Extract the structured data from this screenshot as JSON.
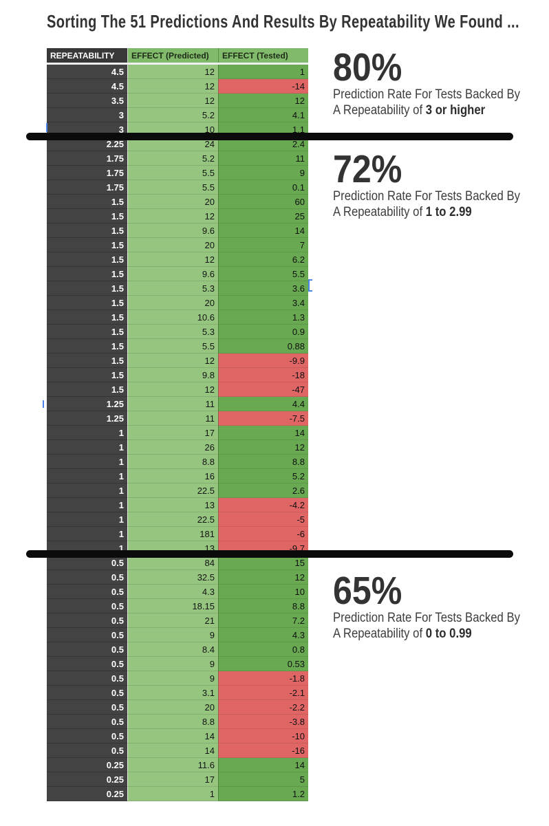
{
  "title": "Sorting The 51 Predictions And Results By Repeatability We Found ...",
  "annotations": [
    {
      "percent": "80%",
      "line1": "Prediction Rate For Tests Backed By",
      "line2_prefix": "A Repeatability of ",
      "line2_bold": "3 or higher"
    },
    {
      "percent": "72%",
      "line1": "Prediction Rate For Tests Backed By",
      "line2_prefix": "A Repeatability of ",
      "line2_bold": "1 to 2.99"
    },
    {
      "percent": "65%",
      "line1": "Prediction Rate For Tests Backed By",
      "line2_prefix": "A Repeatability of ",
      "line2_bold": "0 to 0.99"
    }
  ],
  "chart_data": {
    "type": "table",
    "title": "Sorting The 51 Predictions And Results By Repeatability We Found ...",
    "columns": [
      "REPEATABILITY",
      "EFFECT (Predicted)",
      "EFFECT (Tested)"
    ],
    "rows": [
      [
        4.5,
        12,
        1
      ],
      [
        4.5,
        12,
        -14
      ],
      [
        3.5,
        12,
        12
      ],
      [
        3,
        5.2,
        4.1
      ],
      [
        3,
        10,
        1.1
      ],
      [
        2.25,
        24,
        2.4
      ],
      [
        1.75,
        5.2,
        11
      ],
      [
        1.75,
        5.5,
        9
      ],
      [
        1.75,
        5.5,
        0.1
      ],
      [
        1.5,
        20,
        60
      ],
      [
        1.5,
        12,
        25
      ],
      [
        1.5,
        9.6,
        14
      ],
      [
        1.5,
        20,
        7
      ],
      [
        1.5,
        12,
        6.2
      ],
      [
        1.5,
        9.6,
        5.5
      ],
      [
        1.5,
        5.3,
        3.6
      ],
      [
        1.5,
        20,
        3.4
      ],
      [
        1.5,
        10.6,
        1.3
      ],
      [
        1.5,
        5.3,
        0.9
      ],
      [
        1.5,
        5.5,
        0.88
      ],
      [
        1.5,
        12,
        -9.9
      ],
      [
        1.5,
        9.8,
        -18
      ],
      [
        1.5,
        12,
        -47
      ],
      [
        1.25,
        11,
        4.4
      ],
      [
        1.25,
        11,
        -7.5
      ],
      [
        1,
        17,
        14
      ],
      [
        1,
        26,
        12
      ],
      [
        1,
        8.8,
        8.8
      ],
      [
        1,
        16,
        5.2
      ],
      [
        1,
        22.5,
        2.6
      ],
      [
        1,
        13,
        -4.2
      ],
      [
        1,
        22.5,
        -5
      ],
      [
        1,
        181,
        -6
      ],
      [
        1,
        13,
        -9.7
      ],
      [
        0.5,
        84,
        15
      ],
      [
        0.5,
        32.5,
        12
      ],
      [
        0.5,
        4.3,
        10
      ],
      [
        0.5,
        18.15,
        8.8
      ],
      [
        0.5,
        21,
        7.2
      ],
      [
        0.5,
        9,
        4.3
      ],
      [
        0.5,
        8.4,
        0.8
      ],
      [
        0.5,
        9,
        0.53
      ],
      [
        0.5,
        9,
        -1.8
      ],
      [
        0.5,
        3.1,
        -2.1
      ],
      [
        0.5,
        20,
        -2.2
      ],
      [
        0.5,
        8.8,
        -3.8
      ],
      [
        0.5,
        14,
        -10
      ],
      [
        0.5,
        14,
        -16
      ],
      [
        0.25,
        11.6,
        14
      ],
      [
        0.25,
        17,
        5
      ],
      [
        0.25,
        1,
        1.2
      ]
    ],
    "divider_after_rows": [
      5,
      34
    ],
    "cell_color_rule": "tested >= 0 green, tested < 0 red",
    "group_summaries": [
      {
        "repeatability_range": "3 or higher",
        "prediction_rate": "80%"
      },
      {
        "repeatability_range": "1 to 2.99",
        "prediction_rate": "72%"
      },
      {
        "repeatability_range": "0 to 0.99",
        "prediction_rate": "65%"
      }
    ],
    "legend_position": "none",
    "grid": true
  },
  "colors": {
    "dark_column": "#434343",
    "header_dark": "#383838",
    "header_green": "#82ba6c",
    "light_green": "#95c57f",
    "dark_green": "#68a951",
    "red": "#e06666",
    "divider_black": "#0b0b0b",
    "cursor_blue": "#4a86e8"
  }
}
